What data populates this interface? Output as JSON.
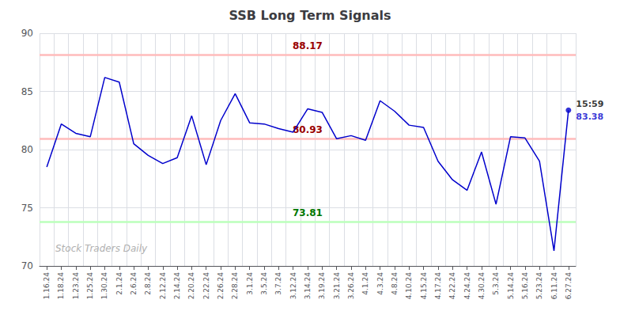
{
  "chart_data": {
    "type": "line",
    "title": "SSB Long Term Signals",
    "categories": [
      "1.16.24",
      "1.18.24",
      "1.23.24",
      "1.25.24",
      "1.30.24",
      "2.1.24",
      "2.6.24",
      "2.8.24",
      "2.12.24",
      "2.14.24",
      "2.20.24",
      "2.22.24",
      "2.26.24",
      "2.28.24",
      "3.1.24",
      "3.5.24",
      "3.7.24",
      "3.12.24",
      "3.14.24",
      "3.19.24",
      "3.21.24",
      "3.26.24",
      "4.1.24",
      "4.3.24",
      "4.8.24",
      "4.10.24",
      "4.15.24",
      "4.17.24",
      "4.22.24",
      "4.24.24",
      "4.30.24",
      "5.3.24",
      "5.14.24",
      "5.16.24",
      "5.23.24",
      "6.11.24",
      "6.27.24"
    ],
    "values": [
      78.5,
      82.2,
      81.4,
      81.1,
      86.2,
      85.8,
      80.5,
      79.5,
      78.8,
      79.3,
      82.9,
      78.7,
      82.5,
      84.8,
      82.3,
      82.2,
      81.8,
      81.5,
      83.5,
      83.2,
      80.93,
      81.2,
      80.8,
      84.2,
      83.3,
      82.1,
      81.9,
      79.0,
      77.4,
      76.5,
      79.8,
      75.3,
      81.1,
      81.0,
      79.0,
      71.3,
      83.38
    ],
    "color": "#0000cc",
    "reference_lines": [
      {
        "value": 88.17,
        "color": "#ffbbbb",
        "label_color": "#990000"
      },
      {
        "value": 80.93,
        "color": "#ffbbbb",
        "label_color": "#990000"
      },
      {
        "value": 73.81,
        "color": "#bbffbb",
        "label_color": "#007700"
      }
    ],
    "last_point": {
      "marker": "circle",
      "color": "#0000cc"
    },
    "annotations": [
      {
        "text": "15:59",
        "color": "#000000"
      },
      {
        "text": "83.38",
        "color": "#0000cc"
      }
    ],
    "watermark": "Stock Traders Daily",
    "ylim": [
      70,
      90
    ],
    "yticks": [
      70,
      75,
      80,
      85,
      90
    ],
    "grid": true
  }
}
